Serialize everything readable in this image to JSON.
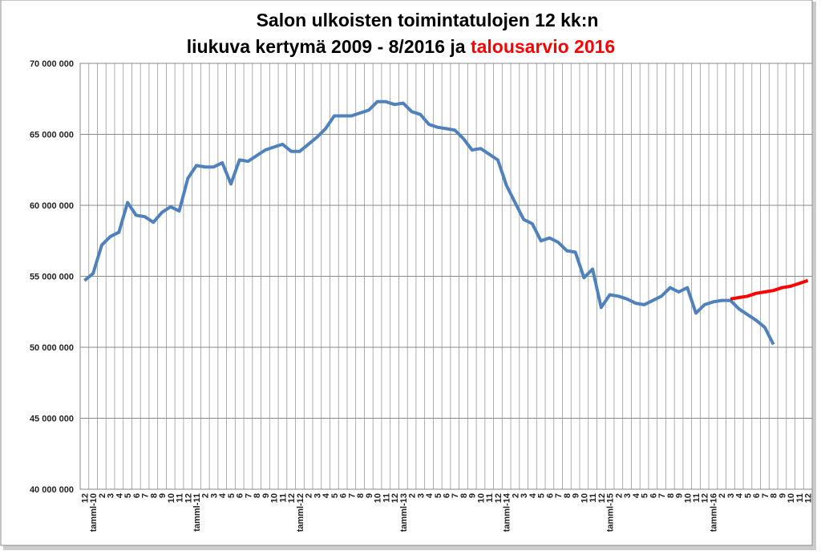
{
  "chart_data": {
    "type": "line",
    "title": [
      "Salon ulkoisten toimintatulojen 12 kk:n",
      "liukuva kertymä 2009 - 8/2016 ja",
      "talousarvio 2016"
    ],
    "title_highlight_color": "#ff0000",
    "categories": [
      "12",
      "tamml-10",
      "2",
      "3",
      "4",
      "5",
      "6",
      "7",
      "8",
      "9",
      "10",
      "11",
      "12",
      "tamml-11",
      "2",
      "3",
      "4",
      "5",
      "6",
      "7",
      "8",
      "9",
      "10",
      "11",
      "12",
      "tamml-12",
      "2",
      "3",
      "4",
      "5",
      "6",
      "7",
      "8",
      "9",
      "10",
      "11",
      "12",
      "tamml-13",
      "2",
      "3",
      "4",
      "5",
      "6",
      "7",
      "8",
      "9",
      "10",
      "11",
      "12",
      "tamml-14",
      "2",
      "3",
      "4",
      "5",
      "6",
      "7",
      "8",
      "9",
      "10",
      "11",
      "12",
      "tamml-15",
      "2",
      "3",
      "4",
      "5",
      "6",
      "7",
      "8",
      "9",
      "10",
      "11",
      "12",
      "tamml-16",
      "2",
      "3",
      "4",
      "5",
      "6",
      "7",
      "8",
      "9",
      "10",
      "11",
      "12"
    ],
    "series": [
      {
        "color": "#4f81bd",
        "values": [
          54700000,
          55200000,
          57200000,
          57800000,
          58100000,
          60200000,
          59300000,
          59200000,
          58800000,
          59500000,
          59900000,
          59600000,
          61900000,
          62800000,
          62700000,
          62700000,
          63000000,
          61500000,
          63200000,
          63100000,
          63500000,
          63900000,
          64100000,
          64300000,
          63800000,
          63800000,
          64300000,
          64800000,
          65400000,
          66300000,
          66300000,
          66300000,
          66500000,
          66700000,
          67300000,
          67300000,
          67100000,
          67200000,
          66600000,
          66400000,
          65700000,
          65500000,
          65400000,
          65300000,
          64700000,
          63900000,
          64000000,
          63600000,
          63200000,
          61400000,
          60200000,
          59000000,
          58700000,
          57500000,
          57700000,
          57400000,
          56800000,
          56700000,
          54900000,
          55500000,
          52800000,
          53700000,
          53600000,
          53400000,
          53100000,
          53000000,
          53300000,
          53600000,
          54200000,
          53900000,
          54200000,
          52400000,
          53000000,
          53200000,
          53300000,
          53300000,
          52700000,
          52300000,
          51900000,
          51400000,
          50200000,
          null,
          null,
          null,
          null
        ]
      },
      {
        "color": "#ff0000",
        "values": [
          null,
          null,
          null,
          null,
          null,
          null,
          null,
          null,
          null,
          null,
          null,
          null,
          null,
          null,
          null,
          null,
          null,
          null,
          null,
          null,
          null,
          null,
          null,
          null,
          null,
          null,
          null,
          null,
          null,
          null,
          null,
          null,
          null,
          null,
          null,
          null,
          null,
          null,
          null,
          null,
          null,
          null,
          null,
          null,
          null,
          null,
          null,
          null,
          null,
          null,
          null,
          null,
          null,
          null,
          null,
          null,
          null,
          null,
          null,
          null,
          null,
          null,
          null,
          null,
          null,
          null,
          null,
          null,
          null,
          null,
          null,
          null,
          null,
          null,
          null,
          53400000,
          53500000,
          53600000,
          53800000,
          53900000,
          54000000,
          54200000,
          54300000,
          54500000,
          54700000
        ]
      }
    ],
    "ylim": [
      40000000,
      70000000
    ],
    "yticks": [
      {
        "value": 40000000,
        "label": "40 000 000"
      },
      {
        "value": 45000000,
        "label": "45 000 000"
      },
      {
        "value": 50000000,
        "label": "50 000 000"
      },
      {
        "value": 55000000,
        "label": "55 000 000"
      },
      {
        "value": 60000000,
        "label": "60 000 000"
      },
      {
        "value": 65000000,
        "label": "65 000 000"
      },
      {
        "value": 70000000,
        "label": "70 000 000"
      }
    ],
    "grid": true
  }
}
